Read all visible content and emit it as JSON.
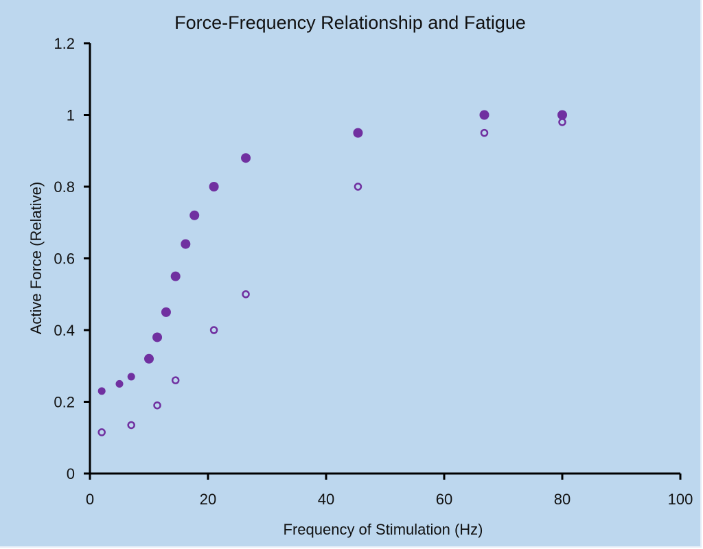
{
  "chart_data": {
    "type": "scatter",
    "title": "Force-Frequency Relationship and Fatigue",
    "xlabel": "Frequency of Stimulation  (Hz)",
    "ylabel": "Active Force (Relative)",
    "xlim": [
      0,
      100
    ],
    "ylim": [
      0,
      1.2
    ],
    "x_ticks": [
      0,
      20,
      40,
      60,
      80,
      100
    ],
    "x_tick_labels": [
      "0",
      "20",
      "40",
      "60",
      "80",
      "100"
    ],
    "y_ticks": [
      0,
      0.2,
      0.4,
      0.6,
      0.8,
      1,
      1.2
    ],
    "y_tick_labels": [
      "0",
      "0.2",
      "0.4",
      "0.6",
      "0.8",
      "1",
      "1.2"
    ],
    "grid": false,
    "legend": "none",
    "series": [
      {
        "name": "filled",
        "marker": "filled-circle",
        "color": "#7030a0",
        "points": [
          {
            "x": 2,
            "y": 0.23
          },
          {
            "x": 5,
            "y": 0.25
          },
          {
            "x": 7,
            "y": 0.27
          },
          {
            "x": 10,
            "y": 0.32
          },
          {
            "x": 11.4,
            "y": 0.38
          },
          {
            "x": 12.9,
            "y": 0.45
          },
          {
            "x": 14.5,
            "y": 0.55
          },
          {
            "x": 16.2,
            "y": 0.64
          },
          {
            "x": 17.7,
            "y": 0.72
          },
          {
            "x": 21,
            "y": 0.8
          },
          {
            "x": 26.4,
            "y": 0.88
          },
          {
            "x": 45.4,
            "y": 0.95
          },
          {
            "x": 66.8,
            "y": 1.0
          },
          {
            "x": 80,
            "y": 1.0
          }
        ]
      },
      {
        "name": "open",
        "marker": "open-circle",
        "color": "#7030a0",
        "points": [
          {
            "x": 2,
            "y": 0.115
          },
          {
            "x": 7,
            "y": 0.135
          },
          {
            "x": 11.4,
            "y": 0.19
          },
          {
            "x": 14.5,
            "y": 0.26
          },
          {
            "x": 21,
            "y": 0.4
          },
          {
            "x": 26.4,
            "y": 0.5
          },
          {
            "x": 45.4,
            "y": 0.8
          },
          {
            "x": 66.8,
            "y": 0.95
          },
          {
            "x": 80,
            "y": 0.98
          }
        ]
      }
    ]
  }
}
